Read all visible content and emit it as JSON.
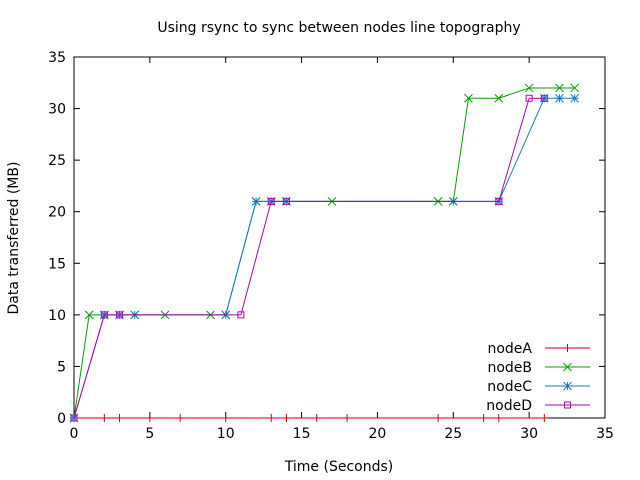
{
  "chart_data": {
    "type": "line",
    "title": "Using rsync to sync between nodes line topography",
    "xlabel": "Time (Seconds)",
    "ylabel": "Data transferred (MB)",
    "xlim": [
      0,
      35
    ],
    "ylim": [
      0,
      35
    ],
    "xticks": [
      0,
      5,
      10,
      15,
      20,
      25,
      30,
      35
    ],
    "yticks": [
      0,
      5,
      10,
      15,
      20,
      25,
      30,
      35
    ],
    "grid": false,
    "legend_position": "bottom-right",
    "series": [
      {
        "name": "nodeA",
        "color": "#cc0000",
        "marker": "plus",
        "points": [
          [
            0,
            0
          ],
          [
            2,
            0
          ],
          [
            3,
            0
          ],
          [
            5,
            0
          ],
          [
            7,
            0
          ],
          [
            10,
            0
          ],
          [
            13,
            0
          ],
          [
            14,
            0
          ],
          [
            16,
            0
          ],
          [
            18,
            0
          ],
          [
            24,
            0
          ],
          [
            27,
            0
          ],
          [
            28,
            0
          ],
          [
            31,
            0
          ]
        ]
      },
      {
        "name": "nodeB",
        "color": "#00a000",
        "marker": "cross",
        "points": [
          [
            0,
            0
          ],
          [
            1,
            10
          ],
          [
            2,
            10
          ],
          [
            3,
            10
          ],
          [
            4,
            10
          ],
          [
            6,
            10
          ],
          [
            9,
            10
          ],
          [
            10,
            10
          ],
          [
            12,
            21
          ],
          [
            13,
            21
          ],
          [
            14,
            21
          ],
          [
            17,
            21
          ],
          [
            24,
            21
          ],
          [
            25,
            21
          ],
          [
            26,
            31
          ],
          [
            28,
            31
          ],
          [
            30,
            32
          ],
          [
            32,
            32
          ],
          [
            33,
            32
          ]
        ]
      },
      {
        "name": "nodeC",
        "color": "#1a78c8",
        "marker": "star",
        "points": [
          [
            0,
            0
          ],
          [
            2,
            10
          ],
          [
            3,
            10
          ],
          [
            4,
            10
          ],
          [
            10,
            10
          ],
          [
            12,
            21
          ],
          [
            13,
            21
          ],
          [
            14,
            21
          ],
          [
            25,
            21
          ],
          [
            28,
            21
          ],
          [
            31,
            31
          ],
          [
            32,
            31
          ],
          [
            33,
            31
          ]
        ]
      },
      {
        "name": "nodeD",
        "color": "#b000b0",
        "marker": "square",
        "points": [
          [
            0,
            0
          ],
          [
            2,
            10
          ],
          [
            3,
            10
          ],
          [
            11,
            10
          ],
          [
            13,
            21
          ],
          [
            14,
            21
          ],
          [
            28,
            21
          ],
          [
            30,
            31
          ],
          [
            31,
            31
          ]
        ]
      }
    ]
  }
}
